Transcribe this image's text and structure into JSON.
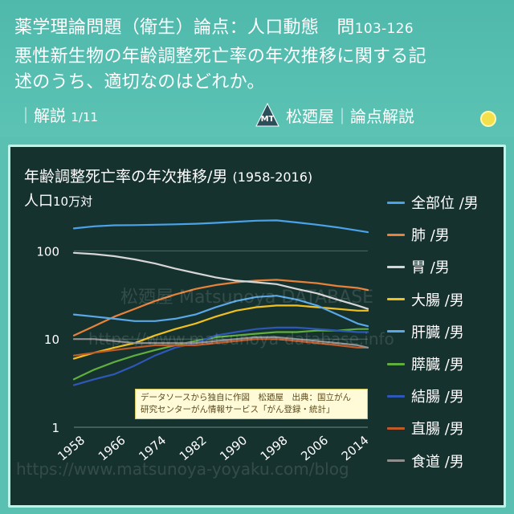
{
  "header": {
    "question_line1": "薬学理論問題（衛生）論点：人口動態　問",
    "question_number": "103-126",
    "question_line2": "悪性新生物の年齢調整死亡率の年次推移に関する記",
    "question_line3": "述のうち、適切なのはどれか。",
    "commentary_prefix": "｜解説",
    "commentary_page": "1/11",
    "logo_text": "MT",
    "brand_label": "松廼屋｜論点解説"
  },
  "chart_data": {
    "type": "line",
    "title": "年齢調整死亡率の年次推移/男",
    "title_suffix": "(1958-2016)",
    "ylabel": "人口",
    "ylabel_unit": "10万対",
    "yscale": "log",
    "ylim": [
      1,
      300
    ],
    "yticks": [
      1,
      10,
      100
    ],
    "xlim": [
      1958,
      2016
    ],
    "xticks": [
      1958,
      1966,
      1974,
      1982,
      1990,
      1998,
      2006,
      2014
    ],
    "grid": "horizontal",
    "legend_position": "right",
    "x": [
      1958,
      1962,
      1966,
      1970,
      1974,
      1978,
      1982,
      1986,
      1990,
      1994,
      1998,
      2002,
      2006,
      2010,
      2014,
      2016
    ],
    "series": [
      {
        "name": "全部位 /男",
        "color": "#4aa3e8",
        "values": [
          180,
          190,
          195,
          196,
          198,
          200,
          203,
          208,
          214,
          220,
          222,
          210,
          198,
          185,
          170,
          163
        ]
      },
      {
        "name": "肺 /男",
        "color": "#e8823a",
        "values": [
          11,
          14,
          18,
          22,
          27,
          32,
          37,
          41,
          44,
          46,
          47,
          45,
          43,
          40,
          38,
          36
        ]
      },
      {
        "name": "胃 /男",
        "color": "#d6d6d6",
        "values": [
          95,
          92,
          87,
          80,
          72,
          63,
          56,
          50,
          46,
          44,
          42,
          37,
          33,
          28,
          24,
          22
        ]
      },
      {
        "name": "大腸 /男",
        "color": "#f0c020",
        "values": [
          6,
          7,
          8,
          9,
          11,
          13,
          15,
          18,
          21,
          23,
          24,
          24,
          23,
          22,
          21,
          21
        ]
      },
      {
        "name": "肝臓 /男",
        "color": "#5aa8e8",
        "values": [
          19,
          18,
          17,
          16,
          16,
          17,
          19,
          23,
          27,
          30,
          31,
          28,
          24,
          19,
          15,
          14
        ]
      },
      {
        "name": "膵臓 /男",
        "color": "#5fae3e",
        "values": [
          3.5,
          4.5,
          5.5,
          6.5,
          7.5,
          8.5,
          9.5,
          10.5,
          11,
          11.5,
          12,
          12,
          12.5,
          12.5,
          13,
          13
        ]
      },
      {
        "name": "結腸 /男",
        "color": "#2e58b8",
        "values": [
          3,
          3.5,
          4,
          5,
          6.5,
          8,
          9,
          11,
          12,
          13,
          13.5,
          13.5,
          13,
          12.5,
          12,
          12
        ]
      },
      {
        "name": "直腸 /男",
        "color": "#c25a28",
        "values": [
          6.5,
          7,
          7.5,
          8,
          8.5,
          8.5,
          8.5,
          9,
          9.5,
          10,
          10,
          9.5,
          9,
          8.5,
          8,
          8
        ]
      },
      {
        "name": "食道 /男",
        "color": "#8f8f8f",
        "values": [
          10,
          10,
          9.5,
          9,
          9,
          9,
          9,
          9.5,
          10,
          10.5,
          10.5,
          10,
          9.5,
          9,
          8.5,
          8
        ]
      }
    ],
    "annotation": [
      "データソースから独自に作図　松廼屋　出典：国立がん",
      "研究センターがん情報サービス「がん登録・統計」"
    ]
  },
  "watermarks": [
    "松廼屋 Matsunoya DATABASE",
    "https://www.matsunoya-database.info",
    "https://www.matsunoya-yoyaku.com/blog"
  ]
}
